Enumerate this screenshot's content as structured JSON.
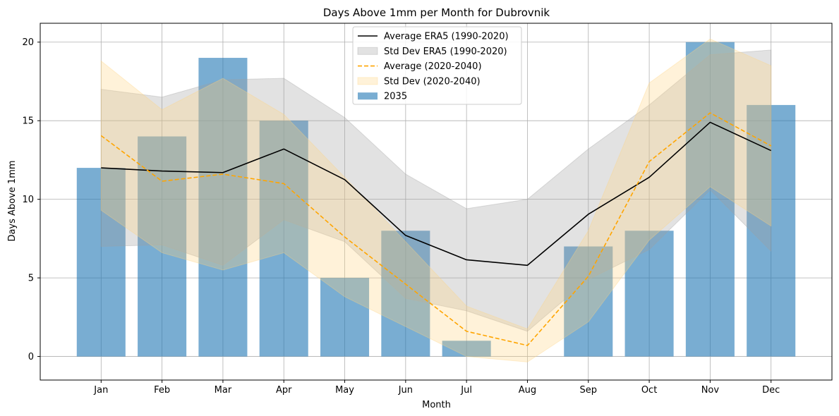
{
  "chart_data": {
    "type": "bar",
    "title": "Days Above 1mm per Month for Dubrovnik",
    "xlabel": "Month",
    "ylabel": "Days Above 1mm",
    "categories": [
      "Jan",
      "Feb",
      "Mar",
      "Apr",
      "May",
      "Jun",
      "Jul",
      "Aug",
      "Sep",
      "Oct",
      "Nov",
      "Dec"
    ],
    "ylim": [
      -1.5,
      21.2
    ],
    "yticks": [
      0,
      5,
      10,
      15,
      20
    ],
    "grid": true,
    "legend_position": "top-center",
    "series": [
      {
        "name": "Average ERA5 (1990-2020)",
        "kind": "line",
        "color": "#000000",
        "values": [
          12.0,
          11.8,
          11.7,
          13.2,
          11.25,
          7.7,
          6.15,
          5.8,
          9.05,
          11.4,
          14.9,
          13.1
        ]
      },
      {
        "name": "Std Dev ERA5 (1990-2020)",
        "kind": "band",
        "color": "#a0a0a0",
        "lower": [
          7.0,
          7.1,
          5.8,
          8.7,
          7.3,
          3.7,
          2.9,
          1.6,
          4.9,
          6.8,
          10.6,
          6.7
        ],
        "upper": [
          17.0,
          16.5,
          17.6,
          17.7,
          15.2,
          11.6,
          9.4,
          10.0,
          13.2,
          16.0,
          19.2,
          19.5
        ]
      },
      {
        "name": "Average (2020-2040)",
        "kind": "line",
        "dash": true,
        "color": "#ffa500",
        "values": [
          14.05,
          11.15,
          11.6,
          11.0,
          7.6,
          4.6,
          1.6,
          0.7,
          5.1,
          12.4,
          15.5,
          13.4
        ]
      },
      {
        "name": "Std Dev (2020-2040)",
        "kind": "band",
        "color": "#ffd480",
        "lower": [
          9.3,
          6.6,
          5.5,
          6.6,
          3.8,
          1.9,
          0.0,
          -0.35,
          2.2,
          7.4,
          10.8,
          8.3
        ],
        "upper": [
          18.8,
          15.7,
          17.7,
          15.4,
          11.4,
          7.3,
          3.2,
          1.75,
          8.0,
          17.4,
          20.2,
          18.5
        ]
      },
      {
        "name": "2035",
        "kind": "bar",
        "color": "#1f77b4",
        "values": [
          12,
          14,
          19,
          15,
          5,
          8,
          1,
          0,
          7,
          8,
          20,
          16
        ]
      }
    ]
  }
}
